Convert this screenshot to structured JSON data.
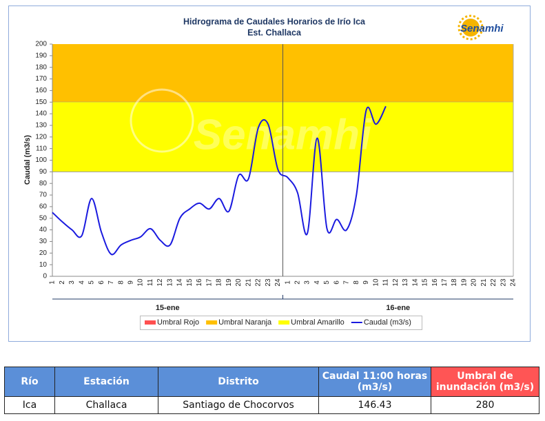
{
  "chart_data": {
    "type": "line",
    "title": "Hidrograma de Caudales Horarios de Irío Ica",
    "subtitle": "Est. Challaca",
    "logo": "Senamhi",
    "ylabel": "Caudal  (m3/s)",
    "categories": [
      "1",
      "2",
      "3",
      "4",
      "5",
      "6",
      "7",
      "8",
      "9",
      "10",
      "11",
      "12",
      "13",
      "14",
      "15",
      "16",
      "17",
      "18",
      "19",
      "20",
      "21",
      "22",
      "23",
      "24",
      "1",
      "2",
      "3",
      "4",
      "5",
      "6",
      "7",
      "8",
      "9",
      "10",
      "11",
      "12",
      "13",
      "14",
      "15",
      "16",
      "17",
      "18",
      "19",
      "20",
      "21",
      "22",
      "23",
      "24"
    ],
    "groups": [
      "15-ene",
      "16-ene"
    ],
    "ylim": [
      0,
      200
    ],
    "yticks": [
      0,
      10,
      20,
      30,
      40,
      50,
      60,
      70,
      80,
      90,
      100,
      110,
      120,
      130,
      140,
      150,
      160,
      170,
      180,
      190,
      200
    ],
    "thresholds": [
      {
        "name": "Umbral Rojo",
        "color": "#ff5050"
      },
      {
        "name": "Umbral Naranja",
        "color": "#ffc000",
        "range": [
          150,
          200
        ]
      },
      {
        "name": "Umbral Amarillo",
        "color": "#ffff00",
        "range": [
          90,
          150
        ]
      }
    ],
    "series": [
      {
        "name": "Caudal (m3/s)",
        "color": "#1a1adf",
        "values": [
          55,
          47,
          40,
          35,
          67,
          38,
          19,
          27,
          31,
          34,
          41,
          31,
          27,
          50,
          58,
          63,
          58,
          67,
          56,
          87,
          84,
          128,
          131,
          92,
          85,
          72,
          37,
          119,
          41,
          49,
          40,
          70,
          143,
          131,
          146.43,
          null,
          null,
          null,
          null,
          null,
          null,
          null,
          null,
          null,
          null,
          null,
          null,
          null
        ]
      }
    ]
  },
  "table": {
    "headers": [
      "Río",
      "Estación",
      "Distrito",
      "Caudal 11:00 horas (m3/s)",
      "Umbral de inundación (m3/s)"
    ],
    "rows": [
      [
        "Ica",
        "Challaca",
        "Santiago de Chocorvos",
        "146.43",
        "280"
      ]
    ]
  }
}
